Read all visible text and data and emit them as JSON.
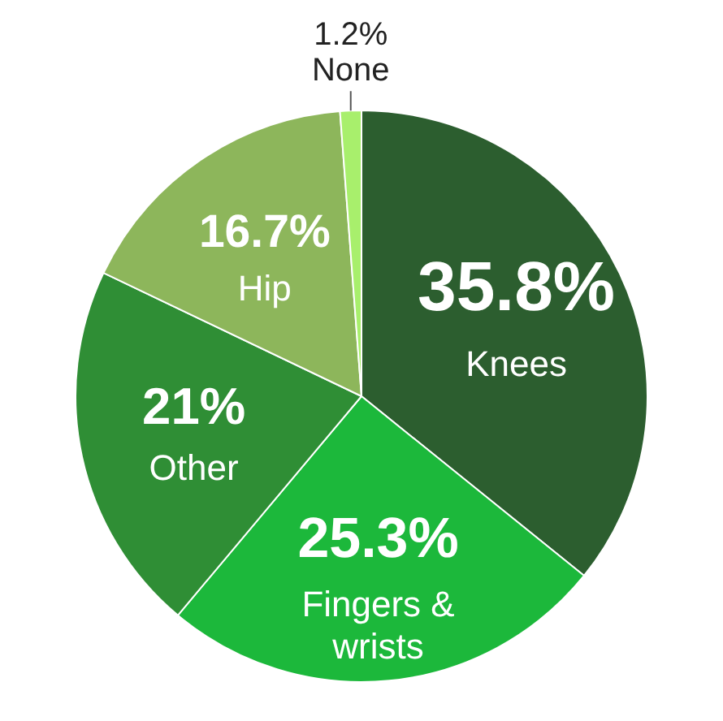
{
  "chart_data": {
    "type": "pie",
    "categories": [
      "Knees",
      "Fingers & wrists",
      "Other",
      "Hip",
      "None"
    ],
    "values": [
      35.8,
      25.3,
      21,
      16.7,
      1.2
    ],
    "value_labels": [
      "35.8%",
      "25.3%",
      "21%",
      "16.7%",
      "1.2%"
    ],
    "colors": [
      "#2c5e2f",
      "#1cb83b",
      "#2f8e35",
      "#8db65b",
      "#a8ef6c"
    ],
    "legend": false
  }
}
